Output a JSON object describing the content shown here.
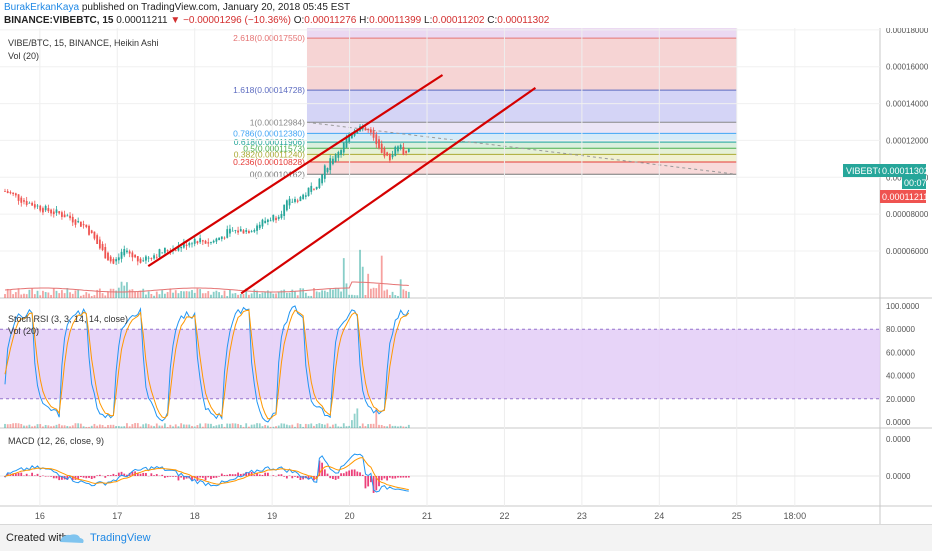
{
  "header": {
    "author": "BurakErkanKaya",
    "published_text": "published on TradingView.com, January 20, 2018 05:45 EST",
    "symbol": "BINANCE:VIBEBTC, 15",
    "last": "0.00011211",
    "change": "▼ −0.00001296 (−10.36%)",
    "ohlc": [
      {
        "k": "O:",
        "v": "0.00011276"
      },
      {
        "k": "H:",
        "v": "0.00011399"
      },
      {
        "k": "L:",
        "v": "0.00011202"
      },
      {
        "k": "C:",
        "v": "0.00011302"
      }
    ]
  },
  "chart": {
    "legend_main": "VIBE/BTC, 15, BINANCE, Heikin Ashi",
    "legend_vol": "Vol (20)",
    "legend_stoch": "Stoch RSI (3, 3, 14, 14, close)",
    "legend_vol2": "Vol (20)",
    "legend_macd": "MACD (12, 26, close, 9)",
    "price_badge": "VIBEBTC",
    "price_badge_value": "0.00011302",
    "countdown": "00:07",
    "last_price_badge": "0.00011211",
    "colors": {
      "up": "#26a69a",
      "down": "#ef5350",
      "channel": "#d50000",
      "stoch_band": "#e3ccf7",
      "macd": "#2196f3",
      "signal": "#ff9800"
    }
  },
  "chart_data": {
    "type": "line",
    "title": "VIBE/BTC, 15, BINANCE, Heikin Ashi",
    "x_ticks": [
      "16",
      "17",
      "18",
      "19",
      "20",
      "21",
      "22",
      "23",
      "24",
      "25",
      "18:00"
    ],
    "x_day_range": [
      15.55,
      26.85
    ],
    "price_ticks": [
      "0.00018000",
      "0.00016000",
      "0.00014000",
      "0.00012000",
      "0.00010000",
      "0.00008000",
      "0.00006000"
    ],
    "price_ylim": [
      3.45e-05,
      0.000181
    ],
    "price_series": [
      [
        15.55,
        9.25e-05
      ],
      [
        15.8,
        8.7e-05
      ],
      [
        16.1,
        8.2e-05
      ],
      [
        16.35,
        7.9e-05
      ],
      [
        16.6,
        7.3e-05
      ],
      [
        16.8,
        6e-05
      ],
      [
        16.95,
        5.3e-05
      ],
      [
        17.1,
        6.1e-05
      ],
      [
        17.25,
        5.5e-05
      ],
      [
        17.4,
        5.7e-05
      ],
      [
        17.6,
        6e-05
      ],
      [
        17.8,
        6.25e-05
      ],
      [
        18.0,
        6.65e-05
      ],
      [
        18.2,
        6.45e-05
      ],
      [
        18.45,
        7.05e-05
      ],
      [
        18.7,
        7.15e-05
      ],
      [
        18.95,
        7.75e-05
      ],
      [
        19.05,
        7.9e-05
      ],
      [
        19.2,
        8.6e-05
      ],
      [
        19.4,
        9e-05
      ],
      [
        19.6,
        9.8e-05
      ],
      [
        19.75,
        0.00011
      ],
      [
        19.9,
        0.0001165
      ],
      [
        20.0,
        0.000124
      ],
      [
        20.15,
        0.000129
      ],
      [
        20.3,
        0.0001225
      ],
      [
        20.4,
        0.0001165
      ],
      [
        20.45,
        0.00011
      ],
      [
        20.55,
        0.000112
      ],
      [
        20.6,
        0.0001185
      ],
      [
        20.7,
        0.0001135
      ],
      [
        20.8,
        0.0001135
      ]
    ],
    "fibonacci": {
      "start_day": 19.45,
      "end_day": 25.0,
      "levels": [
        {
          "label": "2.618(0.00017550)",
          "ratio": 2.618,
          "price": 0.0001755,
          "color": "#e57373"
        },
        {
          "label": "1.618(0.00014728)",
          "ratio": 1.618,
          "price": 0.00014728,
          "color": "#5c6bc0"
        },
        {
          "label": "1(0.00012984)",
          "ratio": 1,
          "price": 0.00012984,
          "color": "#888888"
        },
        {
          "label": "0.786(0.00012380)",
          "ratio": 0.786,
          "price": 0.0001238,
          "color": "#42a5f5"
        },
        {
          "label": "0.618(0.00011906)",
          "ratio": 0.618,
          "price": 0.00011906,
          "color": "#26a69a"
        },
        {
          "label": "0.5(0.00011573)",
          "ratio": 0.5,
          "price": 0.00011573,
          "color": "#4caf50"
        },
        {
          "label": "0.382(0.00011240)",
          "ratio": 0.382,
          "price": 0.0001124,
          "color": "#aaaa33"
        },
        {
          "label": "0.236(0.00010828)",
          "ratio": 0.236,
          "price": 0.00010828,
          "color": "#e53935"
        },
        {
          "label": "0(0.00010162)",
          "ratio": 0,
          "price": 0.00010162,
          "color": "#777777"
        }
      ]
    },
    "channel_lines": [
      {
        "from": [
          17.4,
          5.18e-05
        ],
        "to": [
          21.2,
          0.0001555
        ]
      },
      {
        "from": [
          18.6,
          3.7e-05
        ],
        "to": [
          22.4,
          0.0001485
        ]
      }
    ],
    "stoch_ticks": [
      "100.0000",
      "80.0000",
      "60.0000",
      "40.0000",
      "20.0000",
      "0.0000"
    ],
    "stoch_band": [
      20,
      80
    ],
    "macd_ticks": [
      "0.0000",
      "0.0000"
    ]
  }
}
